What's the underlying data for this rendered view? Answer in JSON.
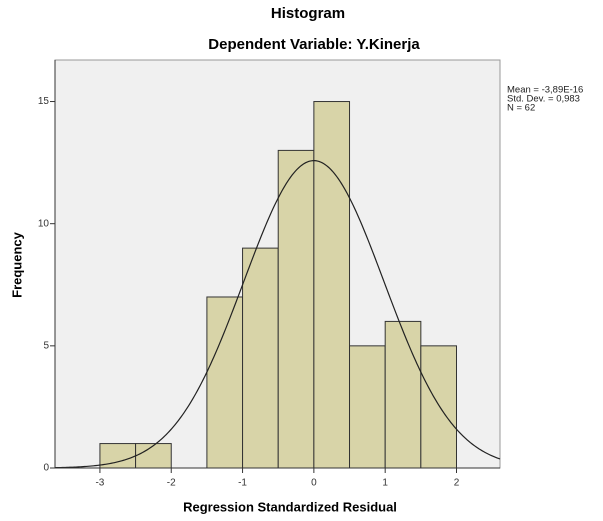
{
  "chart_data": {
    "type": "histogram",
    "title": "Histogram",
    "subtitle": "Dependent Variable: Y.Kinerja",
    "x_label": "Regression Standardized Residual",
    "y_label": "Frequency",
    "bins": [
      -3,
      -2.5,
      -2,
      -1.5,
      -1,
      -0.5,
      0,
      0.5,
      1,
      1.5,
      2
    ],
    "counts": [
      1,
      1,
      0,
      7,
      9,
      13,
      15,
      5,
      6,
      5
    ],
    "color": "#d8d4a8",
    "edge_color": "#333333",
    "background": "#f0f0f0",
    "xlim": [
      -3.63,
      2.61
    ],
    "ylim": [
      0,
      16.7
    ],
    "xticks": [
      -3,
      -2,
      -1,
      0,
      1,
      2
    ],
    "yticks": [
      0,
      5,
      10,
      15
    ],
    "normal_curve": true,
    "stats": [
      {
        "value": -3.89e-16,
        "label": "Mean = -3,89E-16"
      },
      {
        "value": 0.983,
        "label": "Std. Dev. = 0,983"
      },
      {
        "value": 62,
        "label": "N = 62"
      }
    ]
  }
}
